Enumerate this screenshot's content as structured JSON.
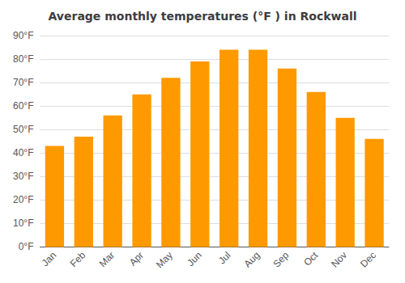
{
  "chart_data": {
    "type": "bar",
    "title": "Average monthly temperatures (°F ) in Rockwall",
    "categories": [
      "Jan",
      "Feb",
      "Mar",
      "Apr",
      "May",
      "Jun",
      "Jul",
      "Aug",
      "Sep",
      "Oct",
      "Nov",
      "Dec"
    ],
    "values": [
      43,
      47,
      56,
      65,
      72,
      79,
      84,
      84,
      76,
      66,
      55,
      46
    ],
    "color": "#FF9900",
    "ylim": [
      0,
      90
    ],
    "yticks": [
      {
        "value": 0,
        "label": "0°F"
      },
      {
        "value": 10,
        "label": "10°F"
      },
      {
        "value": 20,
        "label": "20°F"
      },
      {
        "value": 30,
        "label": "30°F"
      },
      {
        "value": 40,
        "label": "40°F"
      },
      {
        "value": 50,
        "label": "50°F"
      },
      {
        "value": 60,
        "label": "60°F"
      },
      {
        "value": 70,
        "label": "70°F"
      },
      {
        "value": 80,
        "label": "80°F"
      },
      {
        "value": 90,
        "label": "90°F"
      }
    ],
    "grid": true
  }
}
